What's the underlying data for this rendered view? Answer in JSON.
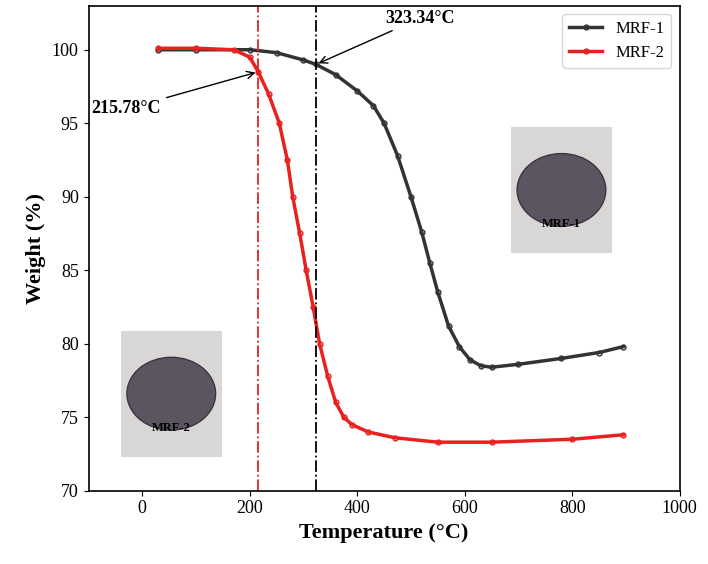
{
  "chart_data": {
    "type": "line",
    "x_label": "Temperature (°C)",
    "y_label": "Weight (%)",
    "xlim": [
      -100,
      1000
    ],
    "xticks": [
      0,
      200,
      400,
      600,
      800,
      1000
    ],
    "ylim": [
      70,
      103
    ],
    "yticks": [
      70,
      75,
      80,
      85,
      90,
      95,
      100
    ],
    "legend": "upper right",
    "series": [
      {
        "name": "MRF-1",
        "color": "#333333",
        "marker": "o",
        "x": [
          30,
          100,
          200,
          250,
          300,
          323.34,
          360,
          400,
          430,
          450,
          475,
          500,
          520,
          535,
          550,
          570,
          590,
          610,
          630,
          650,
          700,
          780,
          850,
          895
        ],
        "values": [
          100.0,
          100.0,
          100.0,
          99.8,
          99.3,
          99.0,
          98.3,
          97.2,
          96.2,
          95.0,
          92.8,
          90.0,
          87.6,
          85.5,
          83.5,
          81.2,
          79.8,
          78.9,
          78.5,
          78.4,
          78.6,
          79.0,
          79.4,
          79.8
        ]
      },
      {
        "name": "MRF-2",
        "color": "#e8201f",
        "marker": "o",
        "x": [
          30,
          100,
          170,
          200,
          215.78,
          235,
          255,
          270,
          280,
          293,
          305,
          318,
          330,
          345,
          360,
          375,
          390,
          420,
          470,
          550,
          650,
          800,
          895
        ],
        "values": [
          100.1,
          100.1,
          100.0,
          99.5,
          98.5,
          97.0,
          95.0,
          92.5,
          90.0,
          87.5,
          85.0,
          82.5,
          80.0,
          77.8,
          76.0,
          75.0,
          74.5,
          74.0,
          73.6,
          73.3,
          73.3,
          73.5,
          73.8
        ]
      }
    ],
    "annotations": [
      {
        "text": "323.34°C",
        "x": 323.34,
        "y": 99.0,
        "color": "#000000",
        "line_style": "dashdot"
      },
      {
        "text": "215.78°C",
        "x": 215.78,
        "y": 98.5,
        "color": "#e8201f",
        "line_style": "dashdot"
      }
    ]
  }
}
